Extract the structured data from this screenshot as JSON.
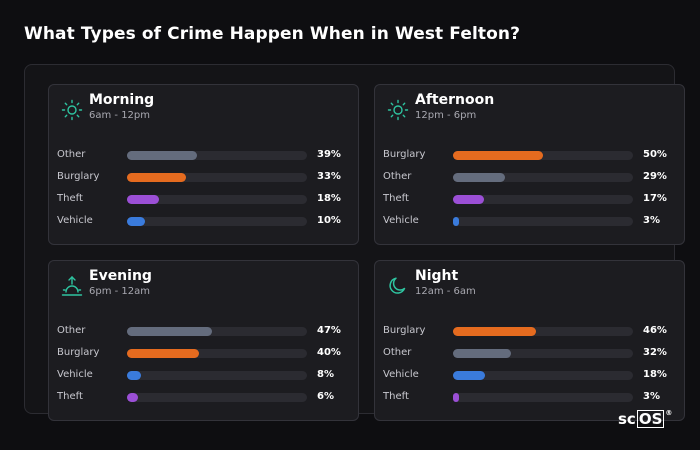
{
  "title": "What Types of Crime Happen When in West Felton?",
  "colors": {
    "Other": "#646c7d",
    "Burglary": "#e56b1f",
    "Theft": "#9b4fd6",
    "Vehicle": "#3a7bdc",
    "icon": "#2ec4a0"
  },
  "chart_data": [
    {
      "type": "bar",
      "title": "Morning",
      "subtitle": "6am - 12pm",
      "icon": "sun-icon",
      "categories": [
        "Other",
        "Burglary",
        "Theft",
        "Vehicle"
      ],
      "values": [
        39,
        33,
        18,
        10
      ],
      "value_labels": [
        "39%",
        "33%",
        "18%",
        "10%"
      ],
      "xlim": [
        0,
        100
      ]
    },
    {
      "type": "bar",
      "title": "Afternoon",
      "subtitle": "12pm - 6pm",
      "icon": "sun-icon",
      "categories": [
        "Burglary",
        "Other",
        "Theft",
        "Vehicle"
      ],
      "values": [
        50,
        29,
        17,
        3
      ],
      "value_labels": [
        "50%",
        "29%",
        "17%",
        "3%"
      ],
      "xlim": [
        0,
        100
      ]
    },
    {
      "type": "bar",
      "title": "Evening",
      "subtitle": "6pm - 12am",
      "icon": "sunset-icon",
      "categories": [
        "Other",
        "Burglary",
        "Vehicle",
        "Theft"
      ],
      "values": [
        47,
        40,
        8,
        6
      ],
      "value_labels": [
        "47%",
        "40%",
        "8%",
        "6%"
      ],
      "xlim": [
        0,
        100
      ]
    },
    {
      "type": "bar",
      "title": "Night",
      "subtitle": "12am - 6am",
      "icon": "moon-icon",
      "categories": [
        "Burglary",
        "Other",
        "Vehicle",
        "Theft"
      ],
      "values": [
        46,
        32,
        18,
        3
      ],
      "value_labels": [
        "46%",
        "32%",
        "18%",
        "3%"
      ],
      "xlim": [
        0,
        100
      ]
    }
  ],
  "logo": {
    "text_a": "sc",
    "text_b": "OS",
    "mark": "®"
  }
}
